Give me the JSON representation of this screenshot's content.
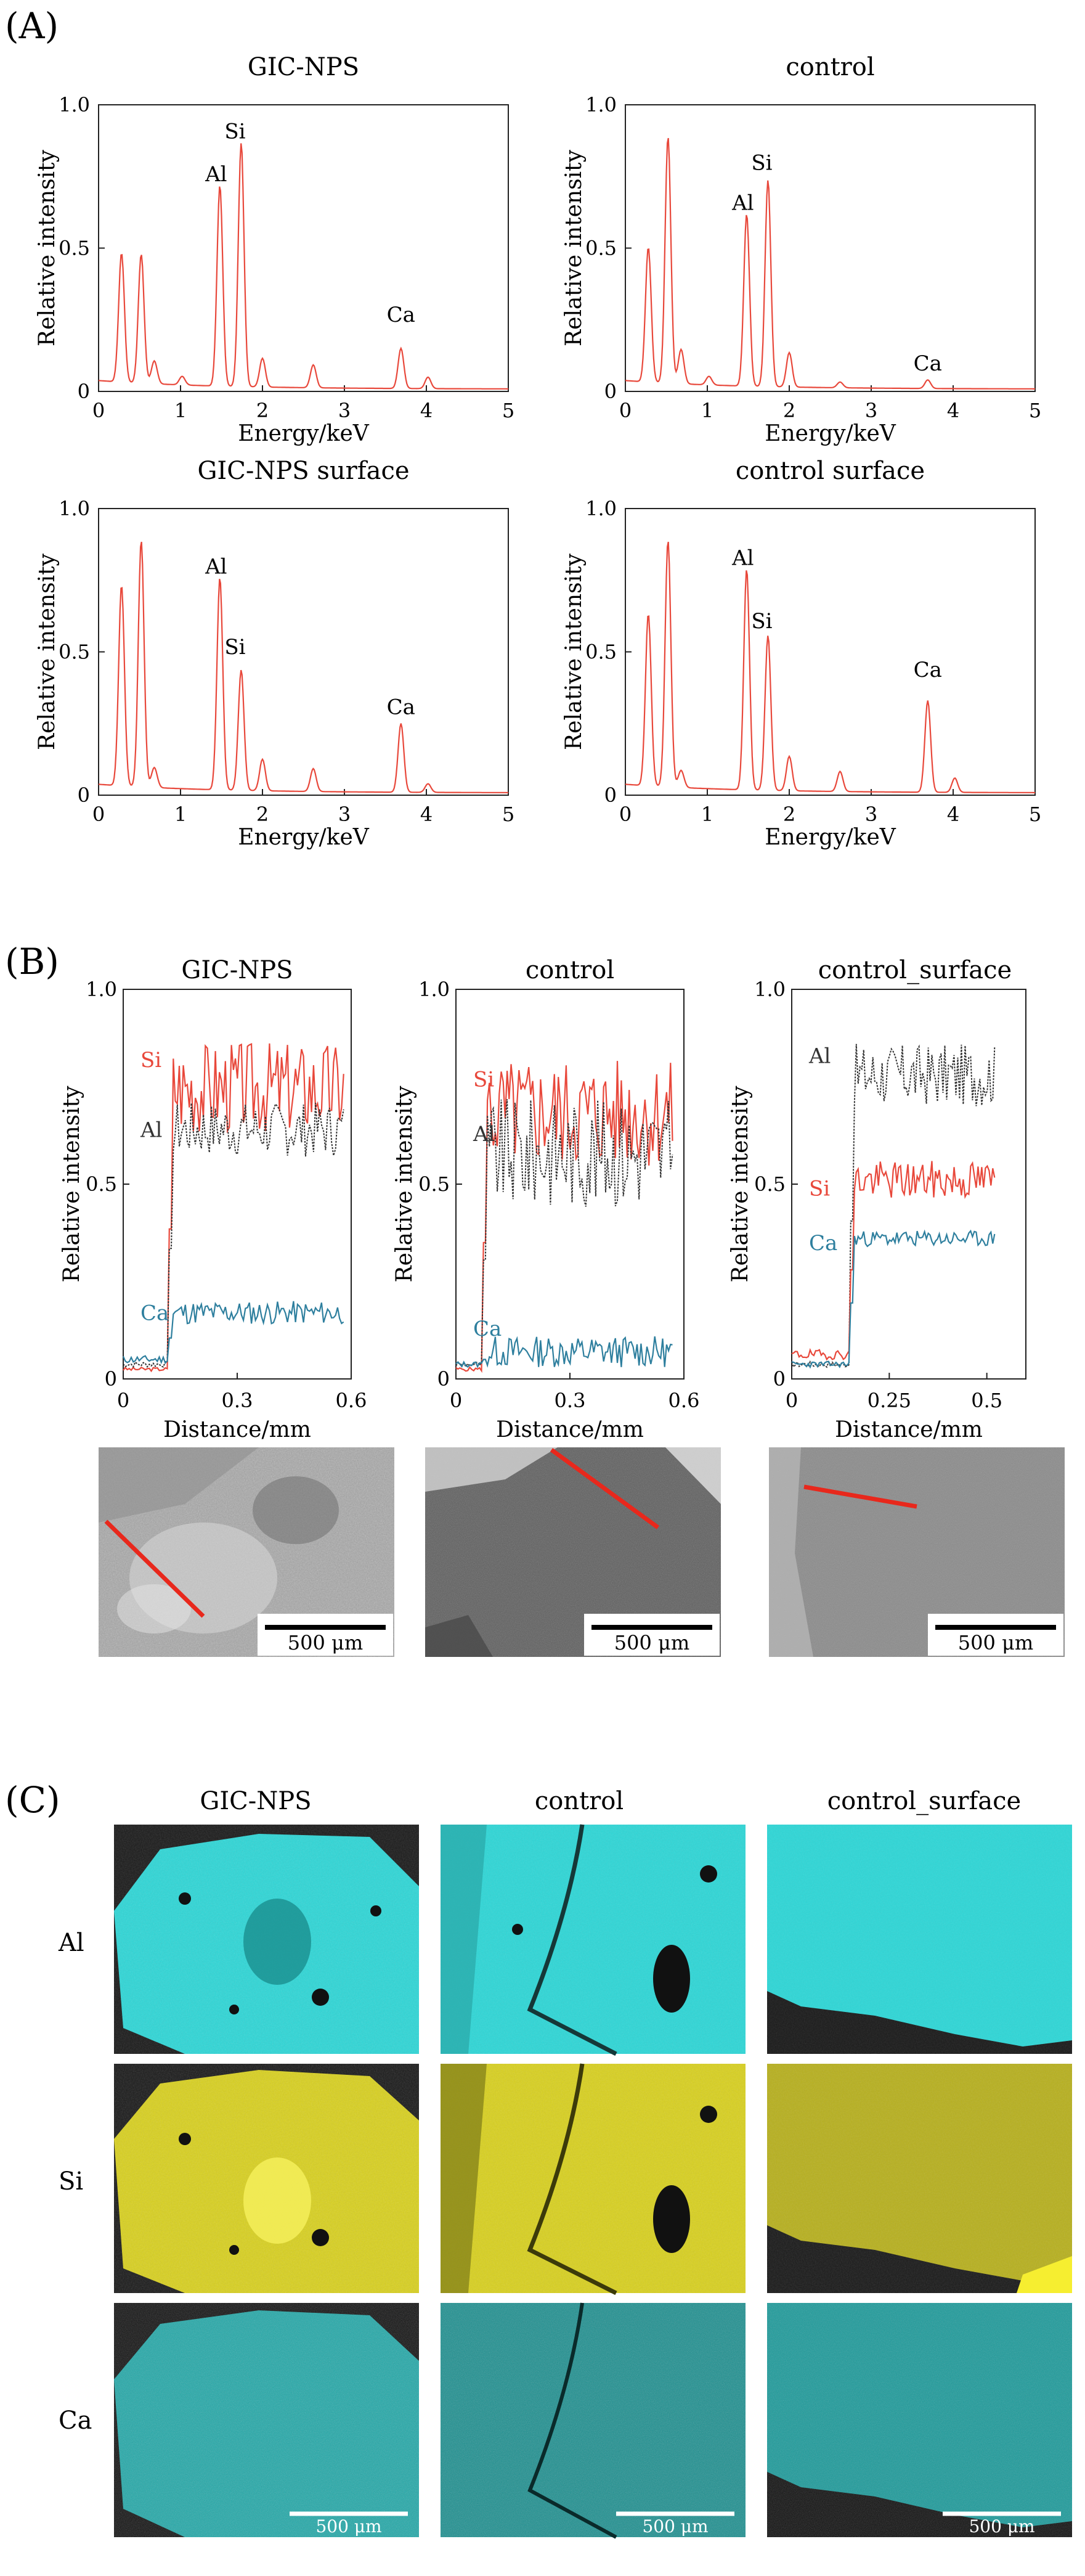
{
  "figure": {
    "panel_labels": [
      "(A)",
      "(B)",
      "(C)"
    ],
    "panelA": {
      "xlabel": "Energy/keV",
      "ylabel": "Relative intensity",
      "xticks": [
        "0",
        "1",
        "2",
        "3",
        "4",
        "5"
      ],
      "yticks": [
        "0",
        "0.5",
        "1.0"
      ]
    },
    "panelB": {
      "xlabel": "Distance/mm",
      "ylabel": "Relative intensity",
      "yticks": [
        "0",
        "0.5",
        "1.0"
      ],
      "scalebar": "500 μm"
    },
    "panelC": {
      "columns": [
        "GIC-NPS",
        "control",
        "control_surface"
      ],
      "rows": [
        "Al",
        "Si",
        "Ca"
      ],
      "scalebar": "500 μm",
      "colors": {
        "Al": "#2fd6d6",
        "Si": "#d8d020",
        "Ca": "#1fa8a8"
      }
    }
  },
  "chart_data": [
    {
      "type": "line",
      "panel": "A",
      "title": "GIC-NPS",
      "xlabel": "Energy/keV",
      "ylabel": "Relative intensity",
      "xlim": [
        0,
        5
      ],
      "ylim": [
        0,
        1
      ],
      "color": "#e8483b",
      "peaks": [
        [
          0.28,
          0.45
        ],
        [
          0.52,
          0.45
        ],
        [
          0.68,
          0.08
        ],
        [
          1.02,
          0.03
        ],
        [
          1.48,
          0.7
        ],
        [
          1.74,
          0.85
        ],
        [
          2.0,
          0.1
        ],
        [
          2.62,
          0.08
        ],
        [
          3.69,
          0.14
        ],
        [
          4.02,
          0.04
        ]
      ],
      "annotations": [
        {
          "text": "Al",
          "x": 1.48,
          "y": 0.72
        },
        {
          "text": "Si",
          "x": 1.74,
          "y": 0.87
        },
        {
          "text": "Ca",
          "x": 3.69,
          "y": 0.23
        }
      ]
    },
    {
      "type": "line",
      "panel": "A",
      "title": "control",
      "xlabel": "Energy/keV",
      "ylabel": "Relative intensity",
      "xlim": [
        0,
        5
      ],
      "ylim": [
        0,
        1
      ],
      "color": "#e8483b",
      "peaks": [
        [
          0.28,
          0.47
        ],
        [
          0.52,
          0.86
        ],
        [
          0.68,
          0.12
        ],
        [
          1.02,
          0.03
        ],
        [
          1.48,
          0.6
        ],
        [
          1.74,
          0.72
        ],
        [
          2.0,
          0.12
        ],
        [
          2.62,
          0.02
        ],
        [
          3.69,
          0.03
        ]
      ],
      "annotations": [
        {
          "text": "Al",
          "x": 1.48,
          "y": 0.62
        },
        {
          "text": "Si",
          "x": 1.74,
          "y": 0.76
        },
        {
          "text": "Ca",
          "x": 3.69,
          "y": 0.06
        }
      ]
    },
    {
      "type": "line",
      "panel": "A",
      "title": "GIC-NPS  surface",
      "xlabel": "Energy/keV",
      "ylabel": "Relative intensity",
      "xlim": [
        0,
        5
      ],
      "ylim": [
        0,
        1
      ],
      "color": "#e8483b",
      "peaks": [
        [
          0.28,
          0.7
        ],
        [
          0.52,
          0.86
        ],
        [
          0.68,
          0.07
        ],
        [
          1.48,
          0.74
        ],
        [
          1.74,
          0.42
        ],
        [
          2.0,
          0.11
        ],
        [
          2.62,
          0.08
        ],
        [
          3.69,
          0.24
        ],
        [
          4.02,
          0.03
        ]
      ],
      "annotations": [
        {
          "text": "Al",
          "x": 1.48,
          "y": 0.76
        },
        {
          "text": "Si",
          "x": 1.74,
          "y": 0.48
        },
        {
          "text": "Ca",
          "x": 3.69,
          "y": 0.27
        }
      ]
    },
    {
      "type": "line",
      "panel": "A",
      "title": "control  surface",
      "xlabel": "Energy/keV",
      "ylabel": "Relative intensity",
      "xlim": [
        0,
        5
      ],
      "ylim": [
        0,
        1
      ],
      "color": "#e8483b",
      "peaks": [
        [
          0.28,
          0.6
        ],
        [
          0.52,
          0.86
        ],
        [
          0.68,
          0.06
        ],
        [
          1.48,
          0.77
        ],
        [
          1.74,
          0.54
        ],
        [
          2.0,
          0.12
        ],
        [
          2.62,
          0.07
        ],
        [
          3.69,
          0.32
        ],
        [
          4.02,
          0.05
        ]
      ],
      "annotations": [
        {
          "text": "Al",
          "x": 1.48,
          "y": 0.79
        },
        {
          "text": "Si",
          "x": 1.74,
          "y": 0.57
        },
        {
          "text": "Ca",
          "x": 3.69,
          "y": 0.4
        }
      ]
    },
    {
      "type": "line",
      "panel": "B",
      "title": "GIC-NPS",
      "xlabel": "Distance/mm",
      "ylabel": "Relative intensity",
      "xlim": [
        0,
        0.6
      ],
      "ylim": [
        0,
        1
      ],
      "xticks": [
        "0",
        "0.3",
        "0.6"
      ],
      "x_range": [
        0.0,
        0.58
      ],
      "step_x": 0.13,
      "series": [
        {
          "name": "Si",
          "color": "#e8483b",
          "dashed": false,
          "pre": 0.02,
          "level": 0.75,
          "amp": 0.12,
          "seed": 3,
          "labelY": 0.82
        },
        {
          "name": "Al",
          "color": "#333333",
          "dashed": true,
          "pre": 0.03,
          "level": 0.64,
          "amp": 0.07,
          "seed": 7,
          "labelY": 0.64
        },
        {
          "name": "Ca",
          "color": "#2e7f9e",
          "dashed": false,
          "pre": 0.04,
          "level": 0.17,
          "amp": 0.03,
          "seed": 11,
          "labelY": 0.17
        }
      ]
    },
    {
      "type": "line",
      "panel": "B",
      "title": "control",
      "xlabel": "Distance/mm",
      "ylabel": "Relative intensity",
      "xlim": [
        0,
        0.6
      ],
      "ylim": [
        0,
        1
      ],
      "xticks": [
        "0",
        "0.3",
        "0.6"
      ],
      "x_range": [
        0.0,
        0.57
      ],
      "step_x": 0.08,
      "series": [
        {
          "name": "Si",
          "color": "#e8483b",
          "dashed": false,
          "pre": 0.02,
          "level": 0.68,
          "amp": 0.14,
          "seed": 5,
          "labelY": 0.77
        },
        {
          "name": "Al",
          "color": "#333333",
          "dashed": true,
          "pre": 0.03,
          "level": 0.58,
          "amp": 0.14,
          "seed": 9,
          "labelY": 0.63
        },
        {
          "name": "Ca",
          "color": "#2e7f9e",
          "dashed": false,
          "pre": 0.03,
          "level": 0.07,
          "amp": 0.04,
          "seed": 13,
          "labelY": 0.13
        }
      ]
    },
    {
      "type": "line",
      "panel": "B",
      "title": "control_surface",
      "xlabel": "Distance/mm",
      "ylabel": "Relative intensity",
      "xlim": [
        0,
        0.6
      ],
      "ylim": [
        0,
        1
      ],
      "xticks": [
        "0",
        "0.25",
        "0.5"
      ],
      "x_range": [
        0.0,
        0.52
      ],
      "step_x": 0.16,
      "series": [
        {
          "name": "Al",
          "color": "#333333",
          "dashed": true,
          "pre": 0.03,
          "level": 0.78,
          "amp": 0.08,
          "seed": 17,
          "labelY": 0.83
        },
        {
          "name": "Si",
          "color": "#e8483b",
          "dashed": false,
          "pre": 0.05,
          "level": 0.51,
          "amp": 0.05,
          "seed": 19,
          "labelY": 0.49
        },
        {
          "name": "Ca",
          "color": "#2e7f9e",
          "dashed": false,
          "pre": 0.03,
          "level": 0.36,
          "amp": 0.02,
          "seed": 23,
          "labelY": 0.35
        }
      ]
    }
  ]
}
